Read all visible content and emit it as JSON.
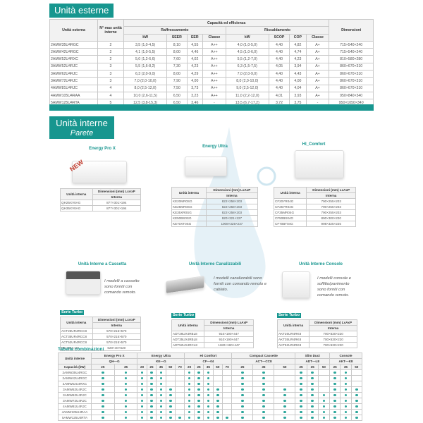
{
  "outdoor": {
    "title": "Unità esterne",
    "headers": {
      "unit": "Unità esterna",
      "max": "N° max unità interne",
      "cap": "Capacità ed efficienza",
      "cool": "Raffrescamento",
      "heat": "Riscaldamento",
      "dim": "Dimensioni",
      "kw": "kW",
      "seer": "SEER",
      "eer": "EER",
      "classe": "Classe",
      "scop": "SCOP",
      "cop": "COP"
    },
    "rows": [
      [
        "2AMW35U4RGC",
        "2",
        "3,5 (1,0-4,5)",
        "8,10",
        "4,55",
        "A++",
        "4,0 (1,0-5,0)",
        "4,40",
        "4,82",
        "A+",
        "715×540×240"
      ],
      [
        "2AMW42U4RGC",
        "2",
        "4,1 (1,0-5,5)",
        "8,00",
        "4,46",
        "A++",
        "4,5 (1,0-6,0)",
        "4,40",
        "4,74",
        "A+",
        "715×540×240"
      ],
      [
        "2AMW52U4RXC",
        "2",
        "5,0 (1,2-6,6)",
        "7,60",
        "4,02",
        "A++",
        "5,5 (1,2-7,0)",
        "4,40",
        "4,23",
        "A+",
        "810×580×280"
      ],
      [
        "3AMW52U4RJC",
        "3",
        "5,5 (1,6-8,2)",
        "7,30",
        "4,23",
        "A++",
        "6,3 (1,5-7,5)",
        "4,05",
        "3,94",
        "A+",
        "860×670×310"
      ],
      [
        "3AMW62U4RJC",
        "3",
        "6,3 (2,0-9,0)",
        "8,00",
        "4,29",
        "A++",
        "7,0 (2,0-9,0)",
        "4,40",
        "4,43",
        "A+",
        "860×670×310"
      ],
      [
        "3AMW72U4RJC",
        "3",
        "7,0 (2,0-10,0)",
        "7,90",
        "4,00",
        "A++",
        "8,0 (2,0-10,0)",
        "4,40",
        "4,00",
        "A+",
        "860×670×310"
      ],
      [
        "4AMW81U4RJC",
        "4",
        "8,0 (2,5-12,0)",
        "7,50",
        "3,73",
        "A++",
        "9,0 (2,5-12,0)",
        "4,40",
        "4,04",
        "A+",
        "860×670×310"
      ],
      [
        "4AMW105U4RAA",
        "4",
        "10,0 (2,6-11,5)",
        "6,50",
        "3,23",
        "A++",
        "11,0 (2,2-12,0)",
        "4,01",
        "3,93",
        "A+",
        "950×840×340"
      ],
      [
        "5AMW125U4RTA",
        "5",
        "12,5 (3,8-15,3)",
        "6,50",
        "3,46",
        "-",
        "13,5 (6,7-17,2)",
        "3,72",
        "3,75",
        "-",
        "950×1050×340"
      ]
    ]
  },
  "indoor": {
    "title": "Unità interne",
    "subtitle": "Parete",
    "badge": "NEW",
    "th": {
      "unit": "Unità interna",
      "dim": "Dimensioni (mm) LxAxP",
      "int": "Interna"
    },
    "serie": "Serie Turbo",
    "series": [
      {
        "name": "Energy Pro X",
        "rows": [
          [
            "QH25XV0AG",
            "877×301×194"
          ],
          [
            "QH35XV0AG",
            "877×301×194"
          ]
        ]
      },
      {
        "name": "Energy Ultra",
        "rows": [
          [
            "KE20MR0SG",
            "822×258×203"
          ],
          [
            "KE25MR0SG",
            "822×258×203"
          ],
          [
            "KE35XR0SG",
            "822×258×203"
          ],
          [
            "KE50BS0SG",
            "920×321×227"
          ],
          [
            "KE70XT0SG",
            "1008×325×237"
          ]
        ]
      },
      {
        "name": "HI_Comfort",
        "rows": [
          [
            "CF20YR04G",
            "790×255×203"
          ],
          [
            "CF25YR04G",
            "790×255×203"
          ],
          [
            "CF35MR04G",
            "790×255×203"
          ],
          [
            "CF50BS04G",
            "890×300×220"
          ],
          [
            "CF70BT04G",
            "998×325×225"
          ]
        ]
      }
    ],
    "others": [
      {
        "name": "Unità Interne a Cassetta",
        "note": "I modelli a cassetto sono forniti con comando remoto.",
        "rows": [
          [
            "ACT26UR4RCC8",
            "570×215×570"
          ],
          [
            "ACT35UR4RCC8",
            "570×215×570"
          ],
          [
            "ACT52UR4RCC8",
            "570×215×570"
          ],
          [
            "PE-GEA-U0",
            "620×40×620"
          ]
        ]
      },
      {
        "name": "Unità Interne Canalizzabili",
        "note": "I modelli canalizzabili sono forniti con comando remoto e cablato.",
        "rows": [
          [
            "ADT26UX4RBL8",
            "910×190×447"
          ],
          [
            "ADT35UX4RBL8",
            "910×190×447"
          ],
          [
            "ADT52UX4RCL8",
            "1180×190×447"
          ]
        ]
      },
      {
        "name": "Unità Interne Console",
        "note": "I modelli console e soffitto/pavimento sono forniti con comando remoto.",
        "rows": [
          [
            "AKT26UR4RK8",
            "700×630×220"
          ],
          [
            "AKT35UR4RK8",
            "700×630×220"
          ],
          [
            "AKT52UR4RK8",
            "700×630×220"
          ]
        ]
      }
    ]
  },
  "combinations": {
    "title": "Tabella combinazioni",
    "unit_label": "Unità interne",
    "cap_label": "Capacità (kW)",
    "groups": [
      {
        "name": "Energy Pro X",
        "code": "QH—G",
        "caps": [
          "25",
          "35"
        ]
      },
      {
        "name": "Energy Ultra",
        "code": "KE—G",
        "caps": [
          "20",
          "25",
          "35",
          "50",
          "70"
        ]
      },
      {
        "name": "Hi Comfort",
        "code": "CF—04",
        "caps": [
          "20",
          "25",
          "35",
          "50",
          "70"
        ]
      },
      {
        "name": "Compact Cassette",
        "code": "ACT—CC8",
        "caps": [
          "25",
          "35",
          "50"
        ]
      },
      {
        "name": "Slim Duct",
        "code": "ADT—L8",
        "caps": [
          "25",
          "35",
          "50"
        ]
      },
      {
        "name": "Console",
        "code": "AKT—K8",
        "caps": [
          "25",
          "35",
          "50"
        ]
      }
    ],
    "rows": [
      {
        "unit": "2AMW35U4RGC",
        "m": [
          1,
          1,
          1,
          1,
          1,
          0,
          0,
          1,
          1,
          1,
          0,
          0,
          1,
          1,
          0,
          1,
          1,
          0,
          1,
          1,
          0
        ]
      },
      {
        "unit": "2AMW42U4RGC",
        "m": [
          1,
          1,
          1,
          1,
          1,
          0,
          0,
          1,
          1,
          1,
          0,
          0,
          1,
          1,
          0,
          1,
          1,
          0,
          1,
          1,
          0
        ]
      },
      {
        "unit": "2AMW52U4RXC",
        "m": [
          1,
          1,
          1,
          1,
          1,
          0,
          0,
          1,
          1,
          1,
          0,
          0,
          1,
          1,
          0,
          1,
          1,
          0,
          1,
          1,
          0
        ]
      },
      {
        "unit": "3AMW52U4RJC",
        "m": [
          1,
          1,
          1,
          1,
          1,
          1,
          0,
          1,
          1,
          1,
          1,
          0,
          1,
          1,
          1,
          1,
          1,
          0,
          1,
          1,
          1
        ]
      },
      {
        "unit": "3AMW62U4RJC",
        "m": [
          1,
          1,
          1,
          1,
          1,
          1,
          0,
          1,
          1,
          1,
          1,
          0,
          1,
          1,
          1,
          1,
          1,
          1,
          1,
          1,
          1
        ]
      },
      {
        "unit": "3AMW72U4RJC",
        "m": [
          1,
          1,
          1,
          1,
          1,
          1,
          0,
          1,
          1,
          1,
          1,
          0,
          1,
          1,
          1,
          1,
          1,
          1,
          1,
          1,
          1
        ]
      },
      {
        "unit": "4AMW81U4RJC",
        "m": [
          1,
          1,
          1,
          1,
          1,
          1,
          0,
          1,
          1,
          1,
          1,
          0,
          1,
          1,
          1,
          1,
          1,
          1,
          1,
          1,
          1
        ]
      },
      {
        "unit": "4AMW105U4RAA",
        "m": [
          1,
          1,
          1,
          1,
          1,
          1,
          0,
          1,
          1,
          1,
          1,
          0,
          1,
          1,
          1,
          1,
          1,
          1,
          1,
          1,
          1
        ]
      },
      {
        "unit": "5AMW125U4RTA",
        "m": [
          1,
          1,
          1,
          1,
          1,
          1,
          1,
          1,
          1,
          1,
          1,
          1,
          1,
          1,
          1,
          1,
          1,
          1,
          1,
          1,
          1
        ]
      }
    ],
    "dot_color": "#2aa59a"
  },
  "colors": {
    "accent": "#17968f"
  }
}
